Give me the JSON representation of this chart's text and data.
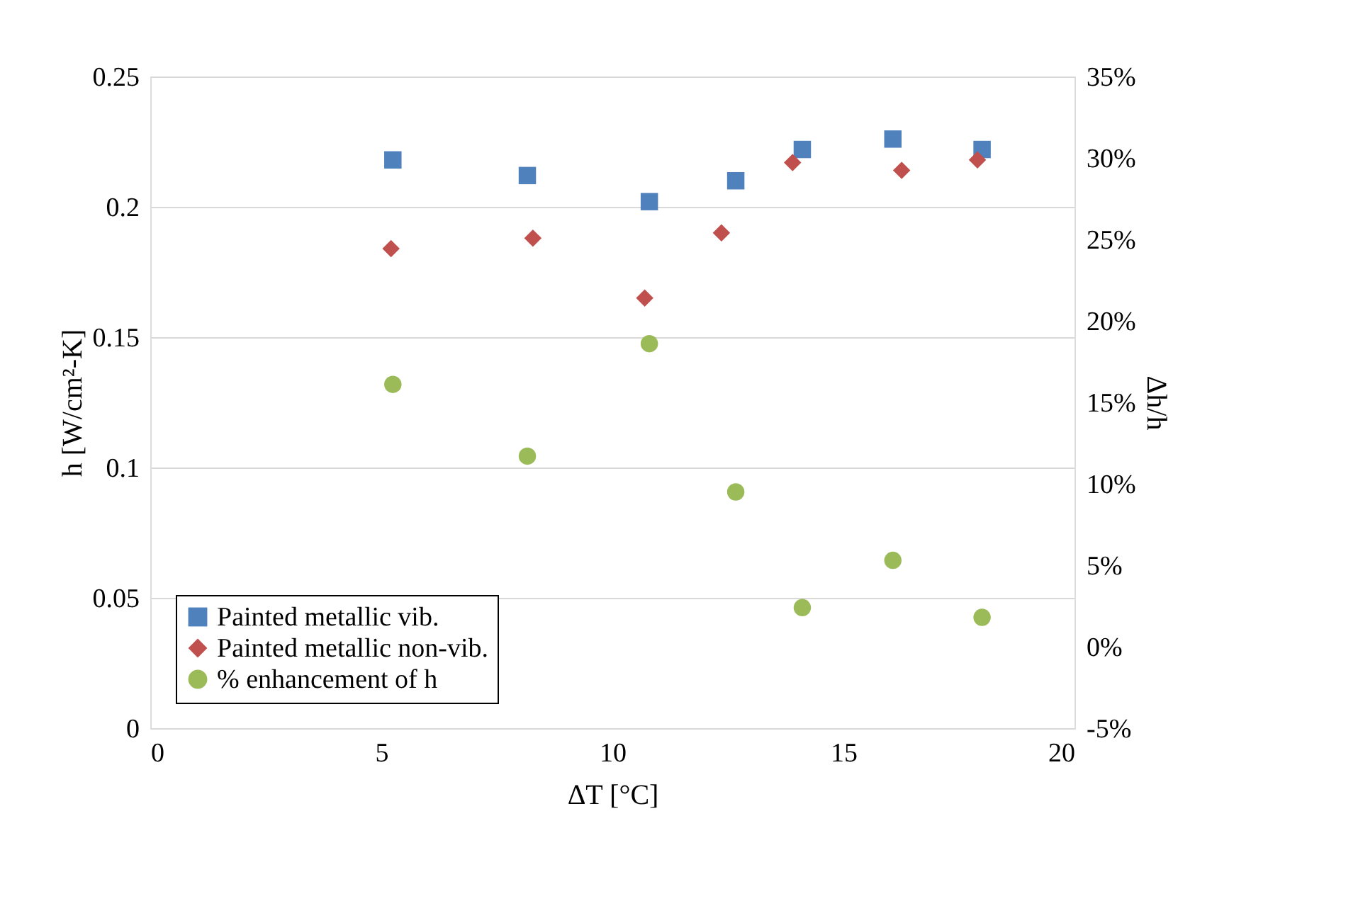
{
  "chart_data": {
    "type": "scatter",
    "xlabel": "ΔT [°C]",
    "ylabel": "h [W/cm²-K]",
    "y2label": "Δh/h",
    "xlim": [
      0,
      20
    ],
    "xticks": [
      0,
      5,
      10,
      15,
      20
    ],
    "ylim": [
      0,
      0.25
    ],
    "yticks": [
      0,
      0.05,
      0.1,
      0.15,
      0.2,
      0.25
    ],
    "y2lim": [
      -5,
      35
    ],
    "y2ticks": [
      {
        "value": -5,
        "label": "-5%"
      },
      {
        "value": 0,
        "label": "0%"
      },
      {
        "value": 5,
        "label": "5%"
      },
      {
        "value": 10,
        "label": "10%"
      },
      {
        "value": 15,
        "label": "15%"
      },
      {
        "value": 20,
        "label": "20%"
      },
      {
        "value": 25,
        "label": "25%"
      },
      {
        "value": 30,
        "label": "30%"
      },
      {
        "value": 35,
        "label": "35%"
      }
    ],
    "grid": "y",
    "legend": "bottom left",
    "series": [
      {
        "name": "Painted metallic vib.",
        "color": "#4f81bd",
        "marker": "square",
        "x": [
          5.25,
          8.16,
          10.8,
          12.67,
          14.11,
          16.07,
          18.0
        ],
        "values": [
          0.218,
          0.212,
          0.202,
          0.21,
          0.222,
          0.226,
          0.222
        ]
      },
      {
        "name": "Painted metallic non-vib.",
        "color": "#c0504d",
        "marker": "diamond",
        "x": [
          5.21,
          8.28,
          10.7,
          12.36,
          13.9,
          16.26,
          17.9
        ],
        "values": [
          0.184,
          0.188,
          0.165,
          0.19,
          0.217,
          0.214,
          0.218
        ]
      },
      {
        "name": "% enhancement of h",
        "color": "#9bbb59",
        "marker": "circle",
        "axis": "y2",
        "x": [
          5.25,
          8.16,
          10.8,
          12.67,
          14.11,
          16.07,
          18.0
        ],
        "values": [
          16.1,
          11.7,
          18.6,
          9.5,
          2.4,
          5.3,
          1.8
        ]
      }
    ]
  }
}
